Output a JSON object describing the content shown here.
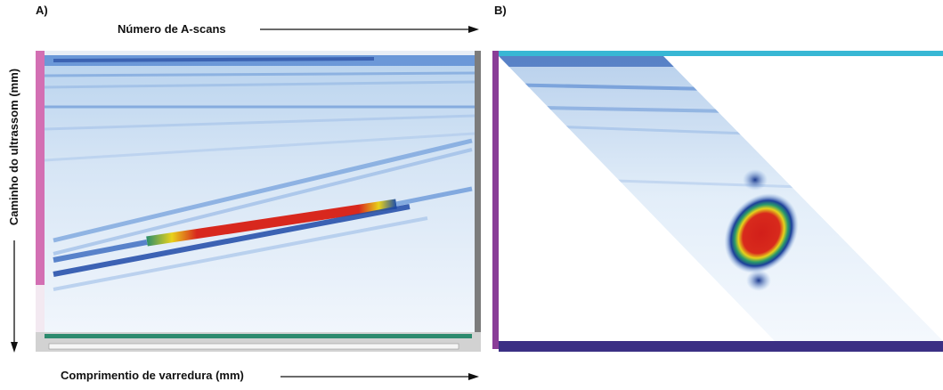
{
  "panel_a": {
    "label": "A)",
    "x_axis_top": "Número de A-scans",
    "y_axis": "Caminho do ultrassom (mm)",
    "x_axis_bottom": "Comprimentio de varredura (mm)"
  },
  "panel_b": {
    "label": "B)"
  }
}
